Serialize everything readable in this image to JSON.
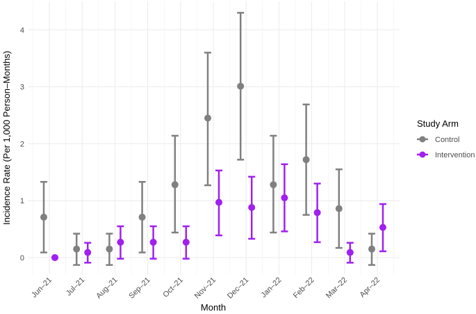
{
  "chart_data": {
    "type": "errorbar",
    "x_label": "Month",
    "y_label": "Incidence Rate (Per 1,000 Person–Months)",
    "legend_title": "Study Arm",
    "legend_position": "right",
    "grid": true,
    "categories": [
      "Jun–21",
      "Jul–21",
      "Aug–21",
      "Sep–21",
      "Oct–21",
      "Nov–21",
      "Dec–21",
      "Jan–22",
      "Feb–22",
      "Mar–22",
      "Apr–22"
    ],
    "ylim": [
      -0.3,
      4.5
    ],
    "yticks": [
      0,
      1,
      2,
      3,
      4
    ],
    "series": [
      {
        "name": "Control",
        "color": "#808080",
        "values": [
          0.71,
          0.15,
          0.15,
          0.71,
          1.28,
          2.45,
          3.01,
          1.28,
          1.72,
          0.86,
          0.15
        ],
        "lower": [
          0.09,
          -0.13,
          -0.13,
          0.09,
          0.44,
          1.27,
          1.72,
          0.44,
          0.75,
          0.17,
          -0.13
        ],
        "upper": [
          1.33,
          0.42,
          0.42,
          1.33,
          2.14,
          3.6,
          4.3,
          2.14,
          2.69,
          1.55,
          0.42
        ]
      },
      {
        "name": "Intervention",
        "color": "#a020f0",
        "values": [
          0,
          0.09,
          0.27,
          0.27,
          0.27,
          0.97,
          0.88,
          1.05,
          0.79,
          0.09,
          0.53
        ],
        "lower": [
          0,
          -0.09,
          -0.02,
          -0.02,
          -0.02,
          0.39,
          0.33,
          0.46,
          0.27,
          -0.09,
          0.11
        ],
        "upper": [
          0,
          0.26,
          0.55,
          0.55,
          0.55,
          1.53,
          1.42,
          1.64,
          1.3,
          0.26,
          0.94
        ]
      }
    ]
  }
}
